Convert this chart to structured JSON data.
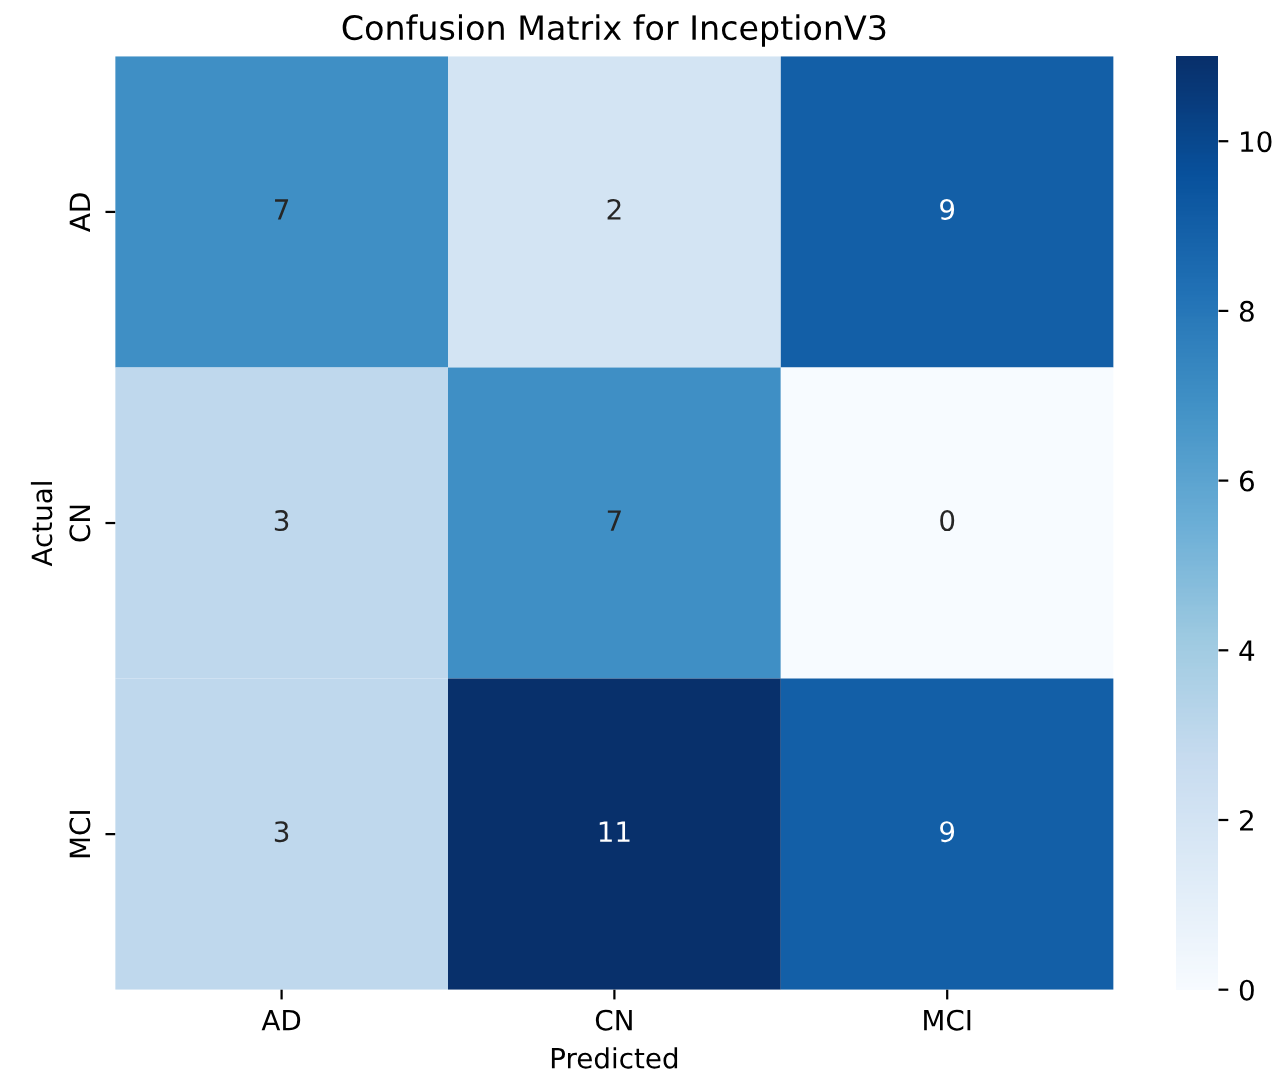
{
  "chart_data": {
    "type": "heatmap",
    "title": "Confusion Matrix for InceptionV3",
    "xlabel": "Predicted",
    "ylabel": "Actual",
    "categories": [
      "AD",
      "CN",
      "MCI"
    ],
    "y_categories": [
      "AD",
      "CN",
      "MCI"
    ],
    "cells": [
      [
        7,
        2,
        9
      ],
      [
        3,
        7,
        0
      ],
      [
        3,
        11,
        9
      ]
    ],
    "clim": [
      0,
      11
    ],
    "cticks": [
      0,
      2,
      4,
      6,
      8,
      10
    ],
    "data_labels": true
  }
}
